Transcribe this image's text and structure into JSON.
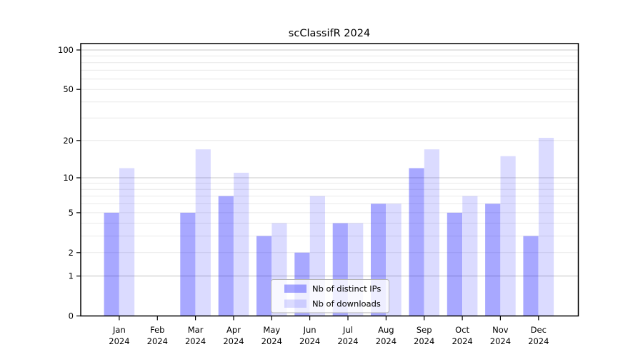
{
  "chart_data": {
    "type": "bar",
    "title": "scClassifR 2024",
    "categories": [
      {
        "month": "Jan",
        "year": "2024"
      },
      {
        "month": "Feb",
        "year": "2024"
      },
      {
        "month": "Mar",
        "year": "2024"
      },
      {
        "month": "Apr",
        "year": "2024"
      },
      {
        "month": "May",
        "year": "2024"
      },
      {
        "month": "Jun",
        "year": "2024"
      },
      {
        "month": "Jul",
        "year": "2024"
      },
      {
        "month": "Aug",
        "year": "2024"
      },
      {
        "month": "Sep",
        "year": "2024"
      },
      {
        "month": "Oct",
        "year": "2024"
      },
      {
        "month": "Nov",
        "year": "2024"
      },
      {
        "month": "Dec",
        "year": "2024"
      }
    ],
    "series": [
      {
        "name": "Nb of distinct IPs",
        "fill": "rgba(0,0,255,0.34)",
        "values": [
          5,
          0,
          5,
          7,
          3,
          2,
          4,
          6,
          12,
          5,
          6,
          3
        ]
      },
      {
        "name": "Nb of downloads",
        "fill": "rgba(0,0,255,0.14)",
        "values": [
          12,
          0,
          17,
          11,
          4,
          7,
          4,
          6,
          17,
          7,
          15,
          21
        ]
      }
    ],
    "yscale": "log1p",
    "ylim": [
      0,
      113
    ],
    "yticks": [
      0,
      1,
      2,
      5,
      10,
      20,
      50,
      100
    ],
    "major_gridlines": [
      1,
      10,
      100
    ],
    "minor_gridlines": [
      2,
      3,
      4,
      5,
      6,
      7,
      8,
      9,
      20,
      30,
      40,
      50,
      60,
      70,
      80,
      90
    ],
    "grid": true,
    "legend_position": "lower center",
    "colors": {
      "major_grid": "#c9c9c9",
      "minor_grid": "#e9e9e9",
      "spine": "#000000",
      "legend_border": "#b3b3b3",
      "legend_bg": "rgba(255,255,255,0.8)"
    }
  }
}
